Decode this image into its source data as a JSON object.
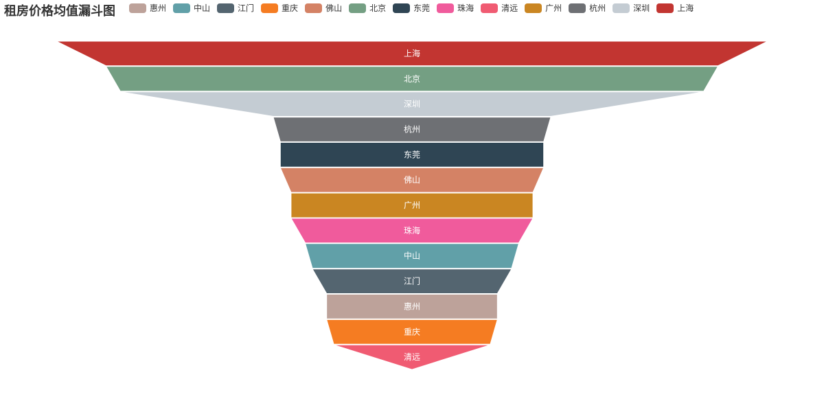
{
  "chart_data": {
    "type": "funnel",
    "title": "租房价格均值漏斗图",
    "sort": "descending",
    "legend": [
      "惠州",
      "中山",
      "江门",
      "重庆",
      "佛山",
      "北京",
      "东莞",
      "珠海",
      "清远",
      "广州",
      "杭州",
      "深圳",
      "上海"
    ],
    "legend_placement": "top",
    "max": 100,
    "series": [
      {
        "name": "上海",
        "value": 100,
        "color": "#c23531"
      },
      {
        "name": "北京",
        "value": 86,
        "color": "#749f83"
      },
      {
        "name": "深圳",
        "value": 82,
        "color": "#c4ccd3"
      },
      {
        "name": "杭州",
        "value": 39,
        "color": "#6e7074"
      },
      {
        "name": "东莞",
        "value": 37,
        "color": "#2f4554"
      },
      {
        "name": "佛山",
        "value": 37,
        "color": "#d48265"
      },
      {
        "name": "广州",
        "value": 34,
        "color": "#ca8622"
      },
      {
        "name": "珠海",
        "value": 34,
        "color": "#f05b9c"
      },
      {
        "name": "中山",
        "value": 30,
        "color": "#61a0a8"
      },
      {
        "name": "江门",
        "value": 28,
        "color": "#546570"
      },
      {
        "name": "惠州",
        "value": 24,
        "color": "#bda29a"
      },
      {
        "name": "重庆",
        "value": 24,
        "color": "#f57c22"
      },
      {
        "name": "清远",
        "value": 22,
        "color": "#f05b72"
      }
    ]
  }
}
